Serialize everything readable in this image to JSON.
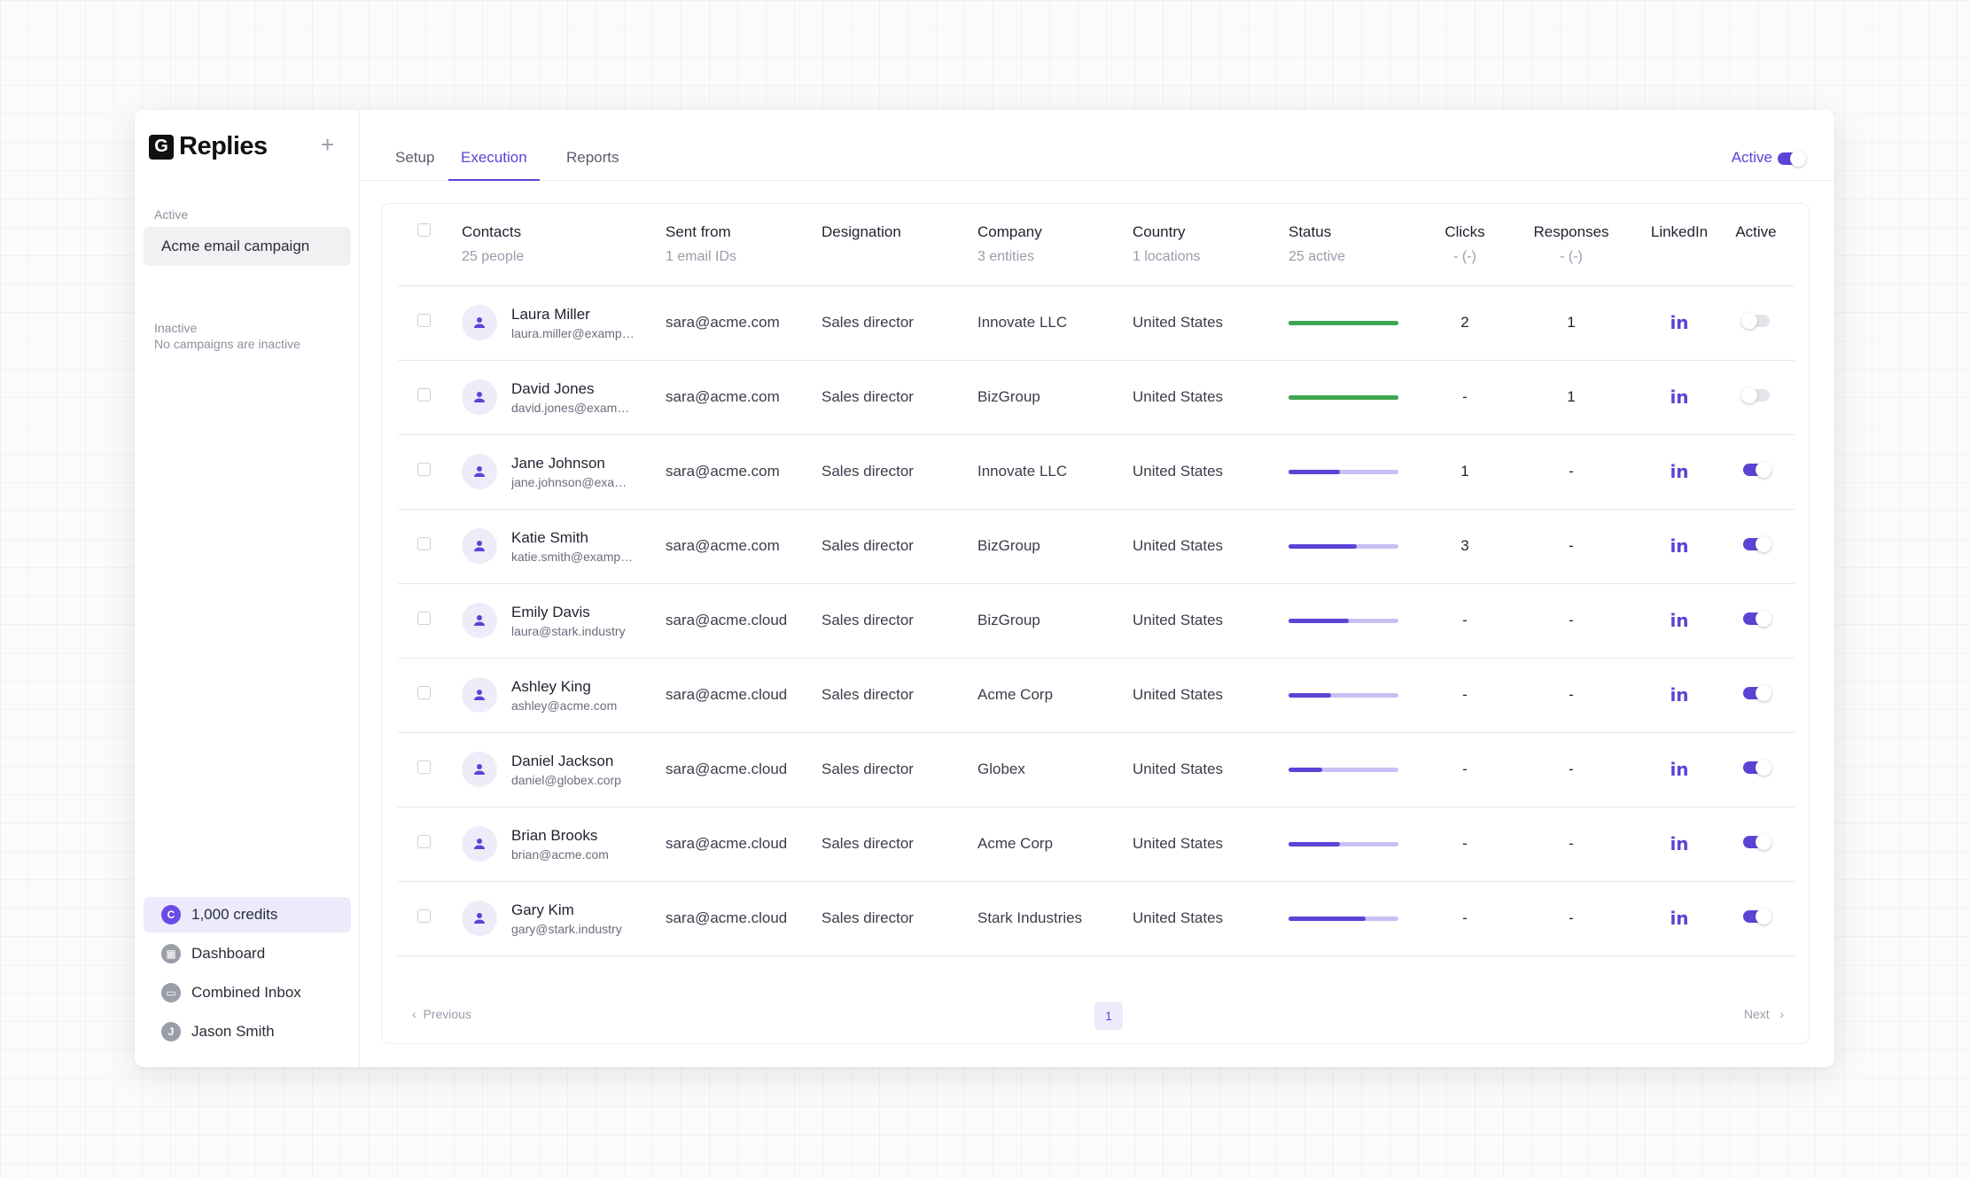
{
  "app": {
    "name": "Replies",
    "logo_letter": "G"
  },
  "sidebar": {
    "active_label": "Active",
    "active_campaigns": [
      "Acme email campaign"
    ],
    "inactive_label": "Inactive",
    "inactive_empty": "No campaigns are inactive",
    "bottom": [
      {
        "label": "1,000 credits",
        "icon": "C",
        "icon_name": "credits-icon"
      },
      {
        "label": "Dashboard",
        "icon": "▦",
        "icon_name": "dashboard-icon"
      },
      {
        "label": "Combined Inbox",
        "icon": "▭",
        "icon_name": "inbox-icon"
      },
      {
        "label": "Jason Smith",
        "icon": "J",
        "icon_name": "user-avatar-icon"
      }
    ]
  },
  "tabs": [
    "Setup",
    "Execution",
    "Reports"
  ],
  "active_tab": "Execution",
  "campaign_status": {
    "label": "Active",
    "on": true
  },
  "table": {
    "headers": {
      "contacts": {
        "title": "Contacts",
        "sub": "25 people"
      },
      "sent_from": {
        "title": "Sent from",
        "sub": "1 email IDs"
      },
      "designation": {
        "title": "Designation",
        "sub": ""
      },
      "company": {
        "title": "Company",
        "sub": "3 entities"
      },
      "country": {
        "title": "Country",
        "sub": "1 locations"
      },
      "status": {
        "title": "Status",
        "sub": "25 active"
      },
      "clicks": {
        "title": "Clicks",
        "sub": "- (-)"
      },
      "responses": {
        "title": "Responses",
        "sub": "- (-)"
      },
      "linkedin": {
        "title": "LinkedIn",
        "sub": ""
      },
      "active": {
        "title": "Active",
        "sub": ""
      }
    },
    "rows": [
      {
        "name": "Laura Miller",
        "email": "laura.miller@example.com",
        "sent_from": "sara@acme.com",
        "designation": "Sales director",
        "company": "Innovate LLC",
        "country": "United States",
        "progress": 1.0,
        "complete": true,
        "clicks": "2",
        "responses": "1",
        "active": false
      },
      {
        "name": "David Jones",
        "email": "david.jones@example.com",
        "sent_from": "sara@acme.com",
        "designation": "Sales director",
        "company": "BizGroup",
        "country": "United States",
        "progress": 1.0,
        "complete": true,
        "clicks": "-",
        "responses": "1",
        "active": false
      },
      {
        "name": "Jane Johnson",
        "email": "jane.johnson@example.com",
        "sent_from": "sara@acme.com",
        "designation": "Sales director",
        "company": "Innovate LLC",
        "country": "United States",
        "progress": 0.47,
        "complete": false,
        "clicks": "1",
        "responses": "-",
        "active": true
      },
      {
        "name": "Katie Smith",
        "email": "katie.smith@example.com",
        "sent_from": "sara@acme.com",
        "designation": "Sales director",
        "company": "BizGroup",
        "country": "United States",
        "progress": 0.62,
        "complete": false,
        "clicks": "3",
        "responses": "-",
        "active": true
      },
      {
        "name": "Emily Davis",
        "email": "laura@stark.industry",
        "sent_from": "sara@acme.cloud",
        "designation": "Sales director",
        "company": "BizGroup",
        "country": "United States",
        "progress": 0.55,
        "complete": false,
        "clicks": "-",
        "responses": "-",
        "active": true
      },
      {
        "name": "Ashley King",
        "email": "ashley@acme.com",
        "sent_from": "sara@acme.cloud",
        "designation": "Sales director",
        "company": "Acme Corp",
        "country": "United States",
        "progress": 0.39,
        "complete": false,
        "clicks": "-",
        "responses": "-",
        "active": true
      },
      {
        "name": "Daniel Jackson",
        "email": "daniel@globex.corp",
        "sent_from": "sara@acme.cloud",
        "designation": "Sales director",
        "company": "Globex",
        "country": "United States",
        "progress": 0.31,
        "complete": false,
        "clicks": "-",
        "responses": "-",
        "active": true
      },
      {
        "name": "Brian Brooks",
        "email": "brian@acme.com",
        "sent_from": "sara@acme.cloud",
        "designation": "Sales director",
        "company": "Acme Corp",
        "country": "United States",
        "progress": 0.47,
        "complete": false,
        "clicks": "-",
        "responses": "-",
        "active": true
      },
      {
        "name": "Gary Kim",
        "email": "gary@stark.industry",
        "sent_from": "sara@acme.cloud",
        "designation": "Sales director",
        "company": "Stark Industries",
        "country": "United States",
        "progress": 0.7,
        "complete": false,
        "clicks": "-",
        "responses": "-",
        "active": true
      }
    ]
  },
  "pagination": {
    "prev": "Previous",
    "next": "Next",
    "current": "1"
  },
  "colors": {
    "accent": "#5b43d6",
    "accent_light": "#c8c0f4",
    "success": "#3fa650"
  },
  "icons": {
    "linkedin": "in"
  }
}
